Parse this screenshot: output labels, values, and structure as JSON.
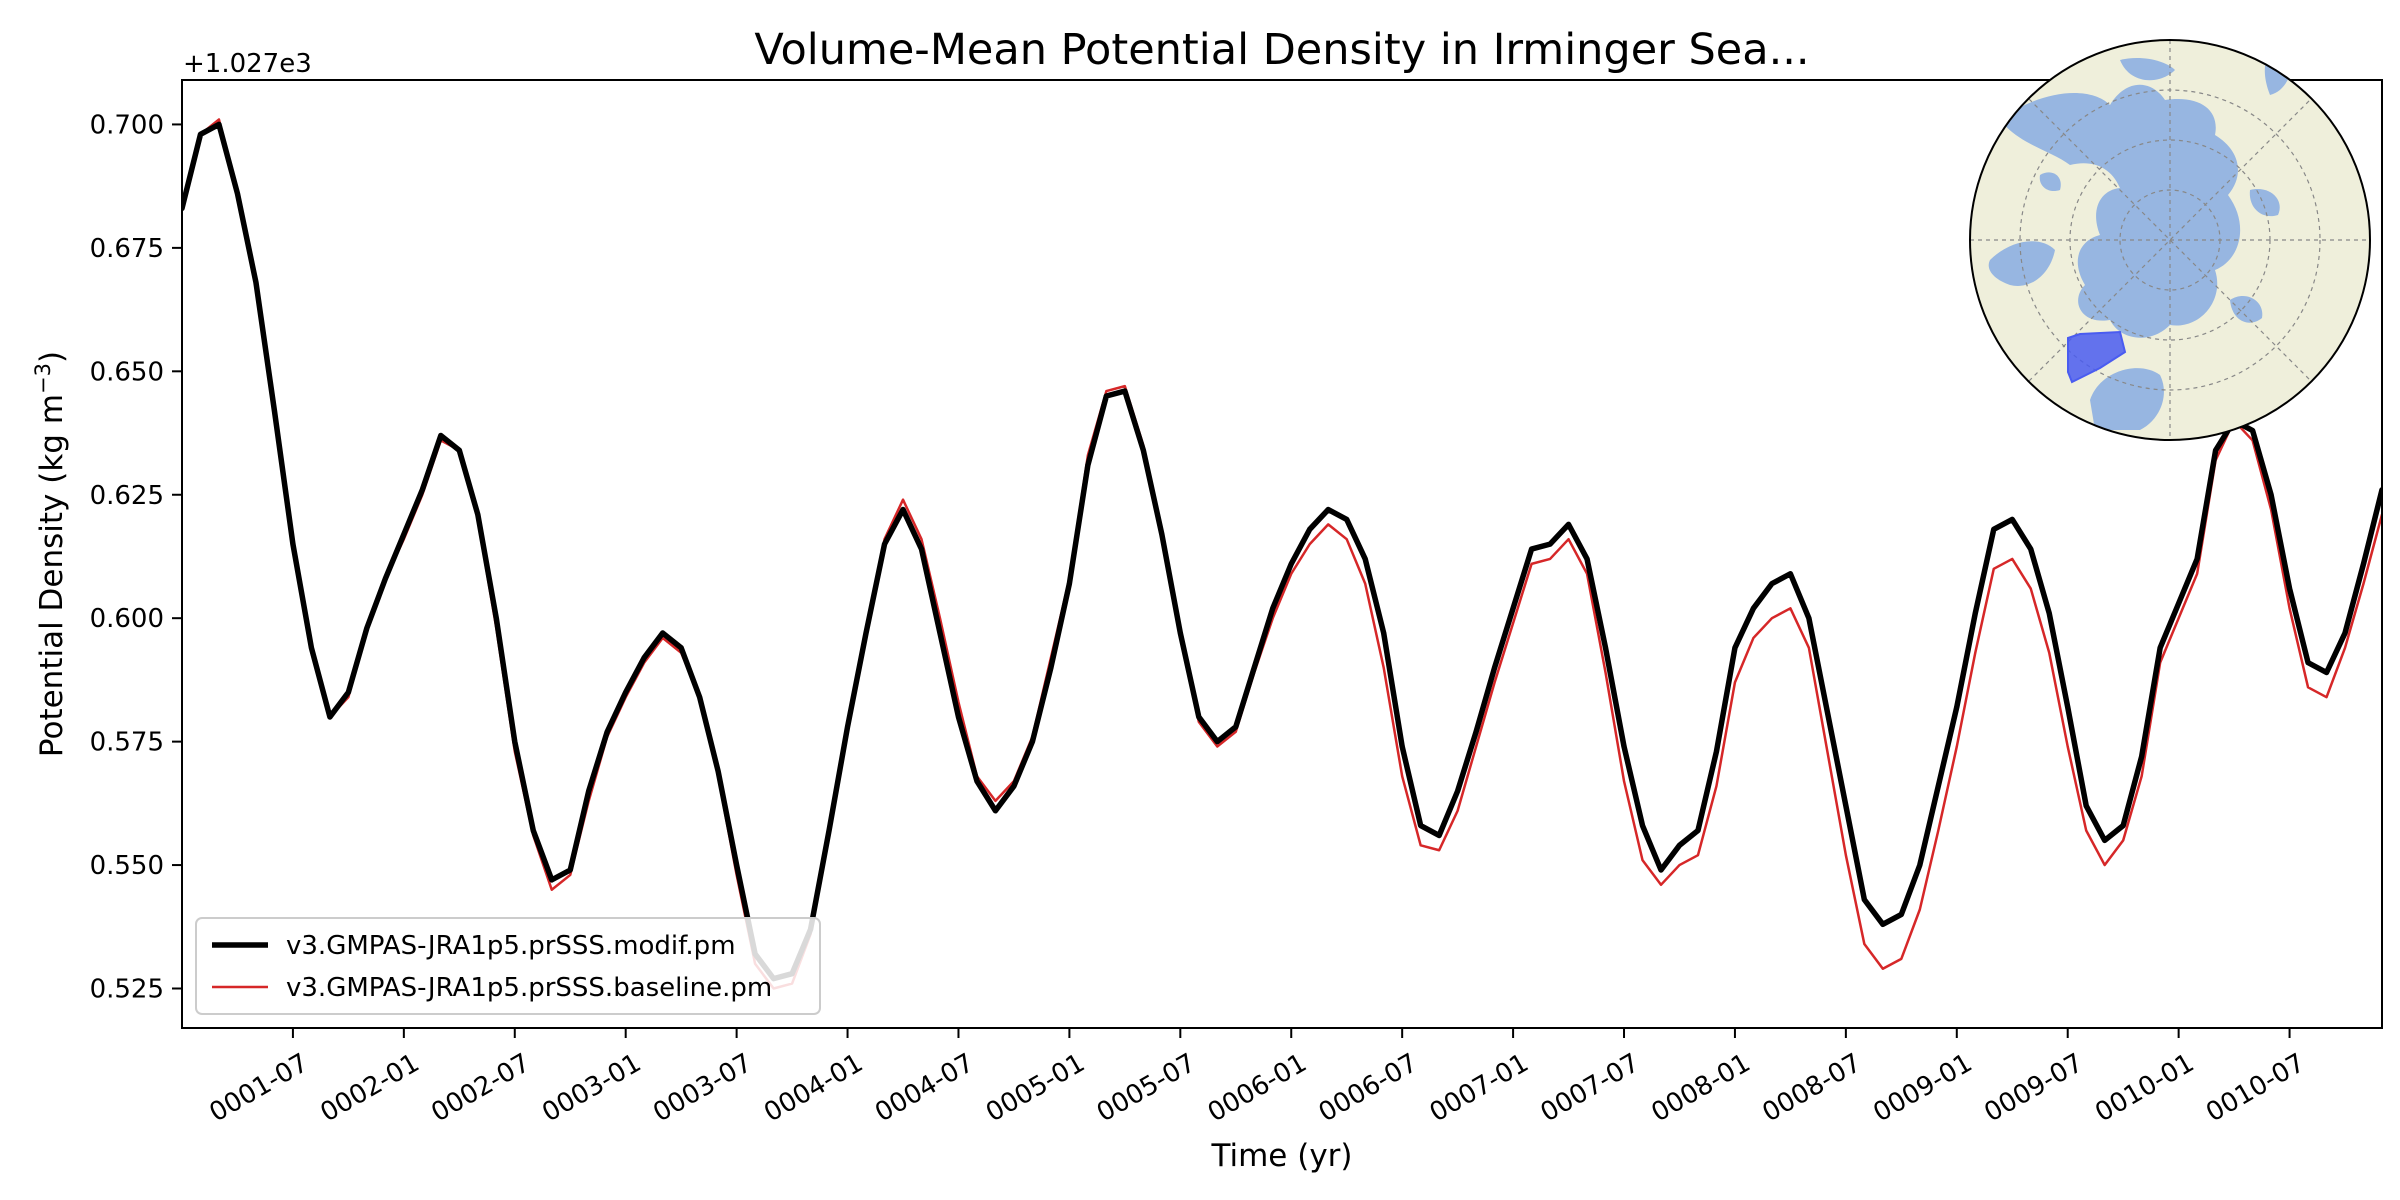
{
  "chart_data": {
    "type": "line",
    "title": "Volume-Mean Potential Density in Irminger Sea...",
    "xlabel": "Time (yr)",
    "ylabel": "Potential Density (kg m",
    "ylabel_sup": "−3",
    "ylabel_close": ")",
    "offset_label": "+1.027e3",
    "ylim": [
      0.517,
      0.709
    ],
    "yticks": [
      0.525,
      0.55,
      0.575,
      0.6,
      0.625,
      0.65,
      0.675,
      0.7
    ],
    "ytick_labels": [
      "0.525",
      "0.550",
      "0.575",
      "0.600",
      "0.625",
      "0.650",
      "0.675",
      "0.700"
    ],
    "xlim": [
      0,
      119
    ],
    "xticks": [
      6,
      12,
      18,
      24,
      30,
      36,
      42,
      48,
      54,
      60,
      66,
      72,
      78,
      84,
      90,
      96,
      102,
      108,
      114
    ],
    "xtick_labels": [
      "0001-07",
      "0002-01",
      "0002-07",
      "0003-01",
      "0003-07",
      "0004-01",
      "0004-07",
      "0005-01",
      "0005-07",
      "0006-01",
      "0006-07",
      "0007-01",
      "0007-07",
      "0008-01",
      "0008-07",
      "0009-01",
      "0009-07",
      "0010-01",
      "0010-07"
    ],
    "legend_position": "lower-left",
    "series": [
      {
        "name": "v3.GMPAS-JRA1p5.prSSS.modif.pm",
        "color": "#000000",
        "values": [
          0.683,
          0.698,
          0.7,
          0.686,
          0.668,
          0.642,
          0.615,
          0.594,
          0.58,
          0.585,
          0.598,
          0.608,
          0.617,
          0.626,
          0.637,
          0.634,
          0.621,
          0.6,
          0.575,
          0.557,
          0.547,
          0.549,
          0.565,
          0.577,
          0.585,
          0.592,
          0.597,
          0.594,
          0.584,
          0.569,
          0.55,
          0.532,
          0.527,
          0.528,
          0.537,
          0.557,
          0.578,
          0.597,
          0.615,
          0.622,
          0.614,
          0.597,
          0.58,
          0.567,
          0.561,
          0.566,
          0.575,
          0.59,
          0.607,
          0.631,
          0.645,
          0.646,
          0.634,
          0.617,
          0.597,
          0.58,
          0.575,
          0.578,
          0.59,
          0.602,
          0.611,
          0.618,
          0.622,
          0.62,
          0.612,
          0.597,
          0.574,
          0.558,
          0.556,
          0.565,
          0.577,
          0.59,
          0.602,
          0.614,
          0.615,
          0.619,
          0.612,
          0.594,
          0.574,
          0.558,
          0.549,
          0.554,
          0.557,
          0.573,
          0.594,
          0.602,
          0.607,
          0.609,
          0.6,
          0.581,
          0.562,
          0.543,
          0.538,
          0.54,
          0.55,
          0.566,
          0.582,
          0.601,
          0.618,
          0.62,
          0.614,
          0.601,
          0.582,
          0.562,
          0.555,
          0.558,
          0.572,
          0.594,
          0.603,
          0.612,
          0.634,
          0.64,
          0.638,
          0.625,
          0.606,
          0.591,
          0.589,
          0.597,
          0.611,
          0.626
        ]
      },
      {
        "name": "v3.GMPAS-JRA1p5.prSSS.baseline.pm",
        "color": "#d62728",
        "values": [
          0.683,
          0.698,
          0.701,
          0.686,
          0.668,
          0.642,
          0.615,
          0.593,
          0.58,
          0.584,
          0.598,
          0.608,
          0.616,
          0.625,
          0.636,
          0.634,
          0.62,
          0.598,
          0.573,
          0.556,
          0.545,
          0.548,
          0.563,
          0.576,
          0.584,
          0.591,
          0.596,
          0.593,
          0.584,
          0.568,
          0.548,
          0.53,
          0.525,
          0.526,
          0.536,
          0.556,
          0.578,
          0.597,
          0.616,
          0.624,
          0.616,
          0.6,
          0.583,
          0.568,
          0.563,
          0.567,
          0.576,
          0.592,
          0.608,
          0.633,
          0.646,
          0.647,
          0.635,
          0.616,
          0.596,
          0.579,
          0.574,
          0.577,
          0.589,
          0.6,
          0.609,
          0.615,
          0.619,
          0.616,
          0.607,
          0.59,
          0.568,
          0.554,
          0.553,
          0.561,
          0.574,
          0.587,
          0.599,
          0.611,
          0.612,
          0.616,
          0.609,
          0.589,
          0.567,
          0.551,
          0.546,
          0.55,
          0.552,
          0.566,
          0.587,
          0.596,
          0.6,
          0.602,
          0.594,
          0.573,
          0.552,
          0.534,
          0.529,
          0.531,
          0.541,
          0.557,
          0.574,
          0.593,
          0.61,
          0.612,
          0.606,
          0.593,
          0.574,
          0.557,
          0.55,
          0.555,
          0.568,
          0.591,
          0.6,
          0.609,
          0.632,
          0.64,
          0.636,
          0.622,
          0.602,
          0.586,
          0.584,
          0.594,
          0.607,
          0.621
        ]
      }
    ],
    "inset": {
      "type": "polar-map",
      "colors": {
        "land": "#efefdb",
        "ocean": "#97b6e1",
        "region": "#4a5cf0"
      }
    }
  }
}
